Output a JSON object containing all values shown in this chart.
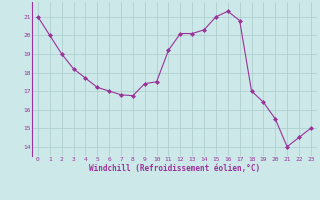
{
  "x": [
    0,
    1,
    2,
    3,
    4,
    5,
    6,
    7,
    8,
    9,
    10,
    11,
    12,
    13,
    14,
    15,
    16,
    17,
    18,
    19,
    20,
    21,
    22,
    23
  ],
  "y": [
    21.0,
    20.0,
    19.0,
    18.2,
    17.7,
    17.2,
    17.0,
    16.8,
    16.75,
    17.4,
    17.5,
    19.2,
    20.1,
    20.1,
    20.3,
    21.0,
    21.3,
    20.8,
    17.0,
    16.4,
    15.5,
    14.0,
    14.5,
    15.0
  ],
  "line_color": "#993399",
  "marker": "D",
  "marker_size": 2,
  "bg_color": "#cce8e8",
  "grid_color": "#aacccc",
  "xlabel": "Windchill (Refroidissement éolien,°C)",
  "xlabel_color": "#993399",
  "tick_color": "#993399",
  "spine_color": "#993399",
  "ylim": [
    13.5,
    21.8
  ],
  "xlim": [
    -0.5,
    23.5
  ],
  "yticks": [
    14,
    15,
    16,
    17,
    18,
    19,
    20,
    21
  ],
  "xticks": [
    0,
    1,
    2,
    3,
    4,
    5,
    6,
    7,
    8,
    9,
    10,
    11,
    12,
    13,
    14,
    15,
    16,
    17,
    18,
    19,
    20,
    21,
    22,
    23
  ]
}
